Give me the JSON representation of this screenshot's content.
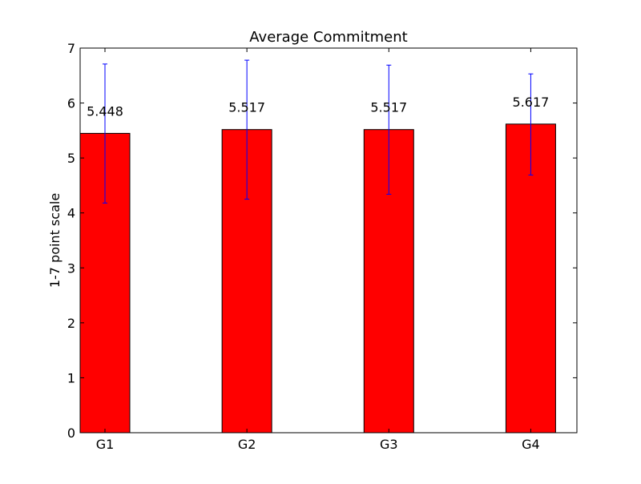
{
  "chart_data": {
    "type": "bar",
    "title": "Average Commitment",
    "xlabel": "",
    "ylabel": "1-7 point scale",
    "categories": [
      "G1",
      "G2",
      "G3",
      "G4"
    ],
    "values": [
      5.448,
      5.517,
      5.517,
      5.617
    ],
    "value_labels": [
      "5.448",
      "5.517",
      "5.517",
      "5.617"
    ],
    "error_bars": [
      {
        "low": 4.18,
        "high": 6.71
      },
      {
        "low": 4.25,
        "high": 6.78
      },
      {
        "low": 4.34,
        "high": 6.69
      },
      {
        "low": 4.69,
        "high": 6.53
      }
    ],
    "ylim": [
      0,
      7
    ],
    "yticks": [
      0,
      1,
      2,
      3,
      4,
      5,
      6,
      7
    ],
    "grid": false,
    "legend": "none",
    "colors": {
      "bar_fill": "#ff0000",
      "bar_edge": "#000000",
      "error_bar": "#0000ff",
      "axes": "#000000"
    }
  }
}
